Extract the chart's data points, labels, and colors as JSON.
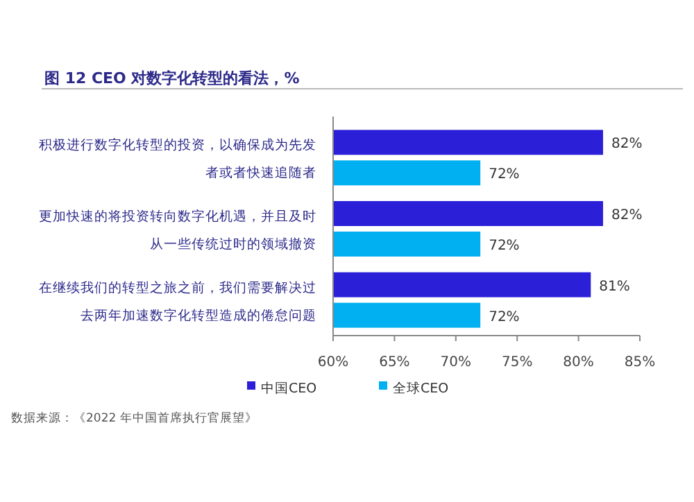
{
  "chart_data": {
    "type": "bar",
    "orientation": "horizontal",
    "title": "图 12  CEO 对数字化转型的看法，%",
    "categories": [
      "积极进行数字化转型的投资，以确保成为先发者或者快速追随者",
      "更加快速的将投资转向数字化机遇，并且及时从一些传统过时的领域撤资",
      "在继续我们的转型之旅之前，我们需要解决过去两年加速数字化转型造成的倦怠问题"
    ],
    "series": [
      {
        "name": "中国CEO",
        "color": "#2b1fd8",
        "values": [
          82,
          82,
          81
        ],
        "value_labels": [
          "82%",
          "82%",
          "81%"
        ]
      },
      {
        "name": "全球CEO",
        "color": "#00b0f0",
        "values": [
          72,
          72,
          72
        ],
        "value_labels": [
          "72%",
          "72%",
          "72%"
        ]
      }
    ],
    "xlim": [
      60,
      85
    ],
    "xticks": [
      {
        "value": 60,
        "label": "60%"
      },
      {
        "value": 65,
        "label": "65%"
      },
      {
        "value": 70,
        "label": "70%"
      },
      {
        "value": 75,
        "label": "75%"
      },
      {
        "value": 80,
        "label": "80%"
      },
      {
        "value": 85,
        "label": "85%"
      }
    ],
    "grid": false,
    "legend": "bottom",
    "annotations": [
      "数据来源：《2022 年中国首席执行官展望》"
    ]
  }
}
